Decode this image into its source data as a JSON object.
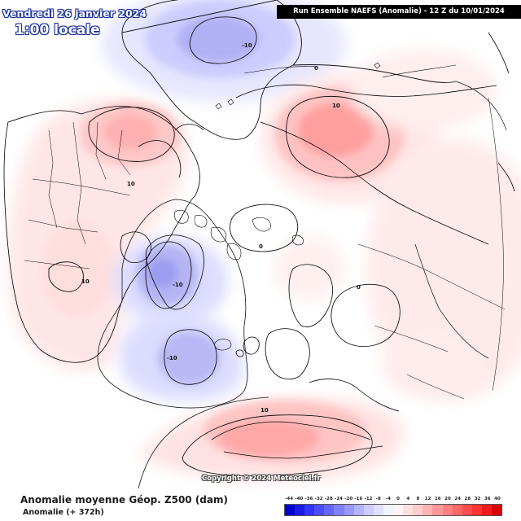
{
  "header": {
    "date": "Vendredi 26 janvier 2024",
    "time": "1:00 locale",
    "run_info": "Run Ensemble NAEFS (Anomalie) - 12 Z du 10/01/2024"
  },
  "map": {
    "contour_labels": [
      {
        "id": "neg-north",
        "text": "-10"
      },
      {
        "id": "zero-north",
        "text": "0"
      },
      {
        "id": "pos-siberia",
        "text": "10"
      },
      {
        "id": "pos-nam",
        "text": "10"
      },
      {
        "id": "pos-nam-east",
        "text": "10"
      },
      {
        "id": "zero-arctic",
        "text": "0"
      },
      {
        "id": "neg-greenland",
        "text": "-10"
      },
      {
        "id": "zero-europe",
        "text": "0"
      },
      {
        "id": "neg-atlantic",
        "text": "-10"
      },
      {
        "id": "pos-mediterranean",
        "text": "10"
      }
    ],
    "copyright": "Copyright © 2024 Meteociel.fr"
  },
  "footer": {
    "title": "Anomalie moyenne Géop. Z500 (dam)",
    "subtitle": "Anomalie (+ 372h)"
  },
  "legend": {
    "labels": [
      "-44",
      "-40",
      "-36",
      "-32",
      "-28",
      "-24",
      "-20",
      "-16",
      "-12",
      "-8",
      "-4",
      "0",
      "4",
      "8",
      "12",
      "16",
      "20",
      "24",
      "28",
      "32",
      "36",
      "40"
    ],
    "colors": [
      "#0000cc",
      "#1a1ae6",
      "#3333ff",
      "#4d4dff",
      "#6666ff",
      "#8080ff",
      "#9999ff",
      "#b3b3ff",
      "#ccccff",
      "#e0e0ff",
      "#f2f2ff",
      "#fff2f2",
      "#ffe0e0",
      "#ffcccc",
      "#ffb3b3",
      "#ff9999",
      "#ff8080",
      "#ff6666",
      "#ff4d4d",
      "#ff3333",
      "#f01a1a",
      "#d90000"
    ]
  }
}
